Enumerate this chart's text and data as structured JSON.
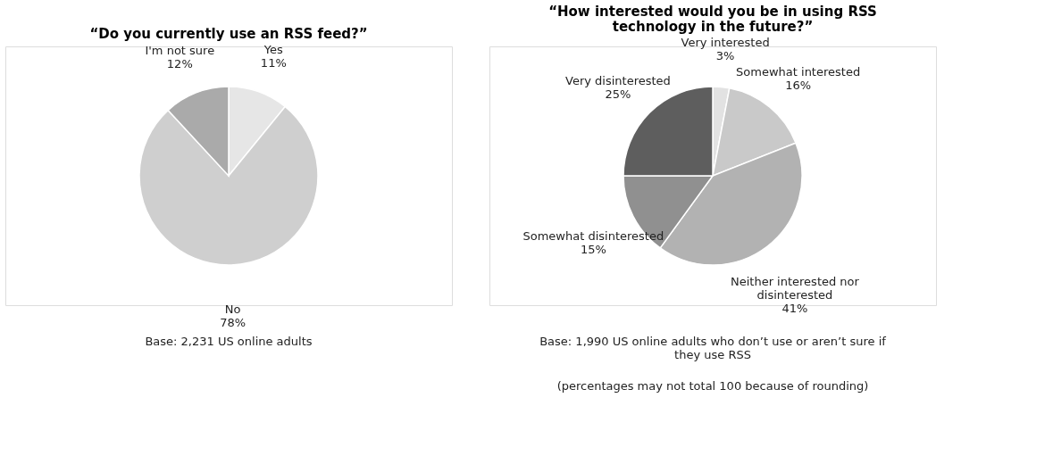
{
  "chart_data": [
    {
      "type": "pie",
      "title": "“Do you currently use an RSS feed?”",
      "categories": [
        "Yes",
        "No",
        "I'm not sure"
      ],
      "values": [
        11,
        78,
        12
      ],
      "value_labels": [
        "11%",
        "78%",
        "12%"
      ],
      "colors": [
        "#e6e6e6",
        "#cfcfcf",
        "#aaaaaa"
      ],
      "annotations": [
        "Base: 2,231 US online adults"
      ]
    },
    {
      "type": "pie",
      "title": "“How interested would you be in using RSS technology in the future?”",
      "categories": [
        "Very interested",
        "Somewhat interested",
        "Neither interested nor disinterested",
        "Somewhat disinterested",
        "Very disinterested"
      ],
      "values": [
        3,
        16,
        41,
        15,
        25
      ],
      "value_labels": [
        "3%",
        "16%",
        "41%",
        "15%",
        "25%"
      ],
      "colors": [
        "#e2e2e2",
        "#c9c9c9",
        "#b2b2b2",
        "#909090",
        "#5e5e5e"
      ],
      "annotations": [
        "Base: 1,990 US online adults who don’t use or aren’t sure if they use RSS",
        "(percentages may not total 100 because of rounding)"
      ]
    }
  ]
}
